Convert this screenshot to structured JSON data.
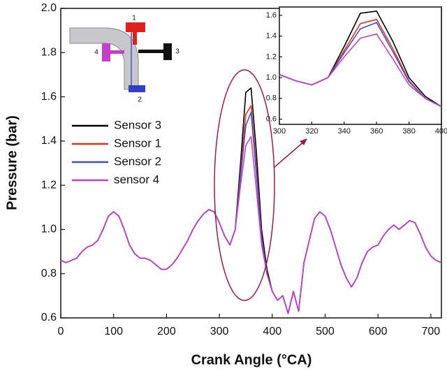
{
  "chart_data": {
    "type": "line",
    "xlabel": "Crank Angle (°CA)",
    "ylabel": "Pressure (bar)",
    "xlim": [
      0,
      720
    ],
    "ylim": [
      0.6,
      2.0
    ],
    "xticks": [
      0,
      100,
      200,
      300,
      400,
      500,
      600,
      700
    ],
    "yticks": [
      0.6,
      0.8,
      {
        "value": 1,
        "label": "1.0"
      },
      1.2,
      1.4,
      1.6,
      1.8,
      {
        "value": 2,
        "label": "2.0"
      }
    ],
    "schematic_labels": [
      "1",
      "2",
      "3",
      "4"
    ],
    "x": [
      0,
      10,
      20,
      30,
      40,
      50,
      60,
      70,
      80,
      90,
      100,
      110,
      120,
      130,
      140,
      150,
      160,
      170,
      180,
      190,
      200,
      210,
      220,
      230,
      240,
      250,
      260,
      270,
      280,
      290,
      300,
      310,
      320,
      330,
      340,
      350,
      360,
      370,
      380,
      390,
      400,
      410,
      420,
      430,
      440,
      450,
      460,
      470,
      480,
      490,
      500,
      510,
      520,
      530,
      540,
      550,
      560,
      570,
      580,
      590,
      600,
      610,
      620,
      630,
      640,
      650,
      660,
      670,
      680,
      690,
      700,
      710,
      720
    ],
    "series": [
      {
        "name": "Sensor 3",
        "color": "#000000",
        "values": [
          0.86,
          0.85,
          0.86,
          0.87,
          0.9,
          0.92,
          0.93,
          0.95,
          1.0,
          1.06,
          1.08,
          1.06,
          1.0,
          0.93,
          0.89,
          0.87,
          0.87,
          0.86,
          0.84,
          0.82,
          0.82,
          0.84,
          0.87,
          0.91,
          0.95,
          1.0,
          1.04,
          1.07,
          1.09,
          1.08,
          1.03,
          0.97,
          0.93,
          1.0,
          1.3,
          1.62,
          1.64,
          1.35,
          1.0,
          0.82,
          0.72,
          0.68,
          0.7,
          0.62,
          0.72,
          0.63,
          0.85,
          0.95,
          1.05,
          1.08,
          1.06,
          1.0,
          0.92,
          0.84,
          0.78,
          0.74,
          0.78,
          0.85,
          0.9,
          0.92,
          0.93,
          0.97,
          1.0,
          1.02,
          1.0,
          1.02,
          1.04,
          1.03,
          0.98,
          0.92,
          0.88,
          0.86,
          0.85
        ]
      },
      {
        "name": "Sensor 1",
        "color": "#e8321e",
        "values": [
          0.86,
          0.85,
          0.86,
          0.87,
          0.9,
          0.92,
          0.93,
          0.95,
          1.0,
          1.06,
          1.08,
          1.06,
          1.0,
          0.93,
          0.89,
          0.87,
          0.87,
          0.86,
          0.84,
          0.82,
          0.82,
          0.84,
          0.87,
          0.91,
          0.95,
          1.0,
          1.04,
          1.07,
          1.09,
          1.08,
          1.03,
          0.97,
          0.93,
          1.0,
          1.26,
          1.52,
          1.56,
          1.28,
          0.97,
          0.8,
          0.72,
          0.68,
          0.7,
          0.62,
          0.72,
          0.63,
          0.85,
          0.95,
          1.05,
          1.08,
          1.06,
          1.0,
          0.92,
          0.84,
          0.78,
          0.74,
          0.78,
          0.85,
          0.9,
          0.92,
          0.93,
          0.97,
          1.0,
          1.02,
          1.0,
          1.02,
          1.04,
          1.03,
          0.98,
          0.92,
          0.88,
          0.86,
          0.85
        ]
      },
      {
        "name": "Sensor 2",
        "color": "#4050c8",
        "values": [
          0.86,
          0.85,
          0.86,
          0.87,
          0.9,
          0.92,
          0.93,
          0.95,
          1.0,
          1.06,
          1.08,
          1.06,
          1.0,
          0.93,
          0.89,
          0.87,
          0.87,
          0.86,
          0.84,
          0.82,
          0.82,
          0.84,
          0.87,
          0.91,
          0.95,
          1.0,
          1.04,
          1.07,
          1.09,
          1.08,
          1.03,
          0.97,
          0.93,
          1.0,
          1.24,
          1.47,
          1.53,
          1.25,
          0.96,
          0.8,
          0.72,
          0.68,
          0.7,
          0.62,
          0.72,
          0.63,
          0.85,
          0.95,
          1.05,
          1.08,
          1.06,
          1.0,
          0.92,
          0.84,
          0.78,
          0.74,
          0.78,
          0.85,
          0.9,
          0.92,
          0.93,
          0.97,
          1.0,
          1.02,
          1.0,
          1.02,
          1.04,
          1.03,
          0.98,
          0.92,
          0.88,
          0.86,
          0.85
        ]
      },
      {
        "name": "sensor 4",
        "color": "#c040c8",
        "values": [
          0.86,
          0.85,
          0.86,
          0.87,
          0.9,
          0.92,
          0.93,
          0.95,
          1.0,
          1.06,
          1.08,
          1.06,
          1.0,
          0.93,
          0.89,
          0.87,
          0.87,
          0.86,
          0.84,
          0.82,
          0.82,
          0.84,
          0.87,
          0.91,
          0.95,
          1.0,
          1.04,
          1.07,
          1.09,
          1.08,
          1.03,
          0.97,
          0.93,
          1.0,
          1.2,
          1.38,
          1.42,
          1.18,
          0.93,
          0.8,
          0.72,
          0.68,
          0.7,
          0.62,
          0.72,
          0.63,
          0.85,
          0.95,
          1.05,
          1.08,
          1.06,
          1.0,
          0.92,
          0.84,
          0.78,
          0.74,
          0.78,
          0.85,
          0.9,
          0.92,
          0.93,
          0.97,
          1.0,
          1.02,
          1.0,
          1.02,
          1.04,
          1.03,
          0.98,
          0.92,
          0.88,
          0.86,
          0.85
        ]
      }
    ],
    "inset": {
      "xlim": [
        300,
        400
      ],
      "ylim": [
        0.55,
        1.68
      ],
      "xticks": [
        300,
        320,
        340,
        360,
        380,
        400
      ],
      "yticks": [
        0.6,
        0.8,
        {
          "value": 1,
          "label": "1.0"
        },
        1.2,
        1.4,
        1.6
      ]
    }
  }
}
